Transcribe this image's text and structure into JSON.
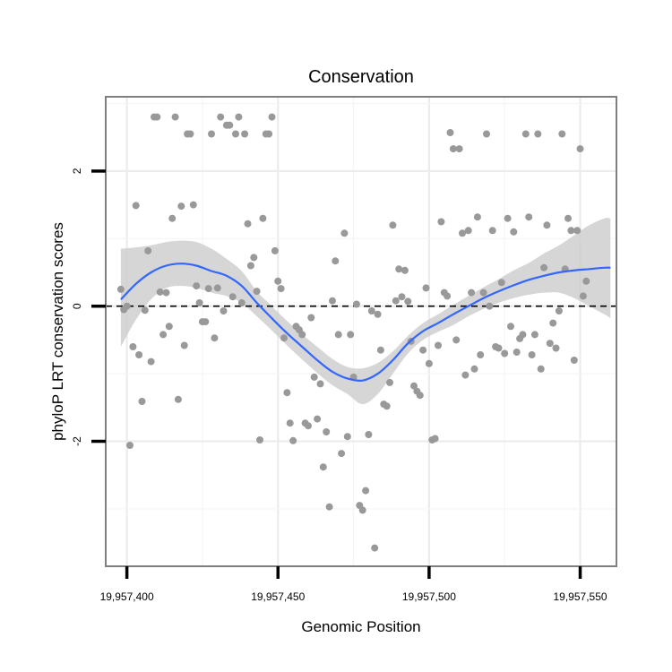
{
  "chart_data": {
    "type": "scatter",
    "title": "Conservation",
    "xlabel": "Genomic Position",
    "ylabel": "phyloP LRT conservation scores",
    "xlim": [
      19957393,
      19957562
    ],
    "ylim": [
      -3.85,
      3.1
    ],
    "x_ticks": [
      19957400,
      19957450,
      19957500,
      19957550
    ],
    "x_tick_labels": [
      "19,957,400",
      "19,957,450",
      "19,957,500",
      "19,957,550"
    ],
    "y_ticks": [
      -2,
      0,
      2
    ],
    "y_tick_labels": [
      "-2",
      "0",
      "2"
    ],
    "reference_line": {
      "y": 0,
      "style": "dashed"
    },
    "grid": true,
    "colors": {
      "points": "#999999",
      "smooth_line": "#3366ff",
      "confidence_band": "#cccccc",
      "panel_border": "#7f7f7f"
    },
    "points": [
      {
        "x": 19957398,
        "y": 0.25
      },
      {
        "x": 19957399,
        "y": -0.05
      },
      {
        "x": 19957400,
        "y": 0.0
      },
      {
        "x": 19957401,
        "y": -2.06
      },
      {
        "x": 19957402,
        "y": -0.6
      },
      {
        "x": 19957403,
        "y": 1.49
      },
      {
        "x": 19957404,
        "y": -0.72
      },
      {
        "x": 19957405,
        "y": -1.41
      },
      {
        "x": 19957406,
        "y": -0.06
      },
      {
        "x": 19957407,
        "y": 0.82
      },
      {
        "x": 19957408,
        "y": -0.82
      },
      {
        "x": 19957409,
        "y": 2.8
      },
      {
        "x": 19957410,
        "y": 2.8
      },
      {
        "x": 19957411,
        "y": 0.21
      },
      {
        "x": 19957412,
        "y": -0.42
      },
      {
        "x": 19957413,
        "y": 0.2
      },
      {
        "x": 19957414,
        "y": -0.3
      },
      {
        "x": 19957415,
        "y": 1.3
      },
      {
        "x": 19957416,
        "y": 2.8
      },
      {
        "x": 19957417,
        "y": -1.38
      },
      {
        "x": 19957418,
        "y": 1.48
      },
      {
        "x": 19957419,
        "y": -0.58
      },
      {
        "x": 19957420,
        "y": 2.55
      },
      {
        "x": 19957421,
        "y": 2.55
      },
      {
        "x": 19957422,
        "y": 1.5
      },
      {
        "x": 19957423,
        "y": 0.3
      },
      {
        "x": 19957424,
        "y": 0.05
      },
      {
        "x": 19957425,
        "y": -0.23
      },
      {
        "x": 19957426,
        "y": -0.23
      },
      {
        "x": 19957427,
        "y": 0.26
      },
      {
        "x": 19957428,
        "y": 2.55
      },
      {
        "x": 19957429,
        "y": -0.47
      },
      {
        "x": 19957430,
        "y": 0.27
      },
      {
        "x": 19957431,
        "y": 2.8
      },
      {
        "x": 19957432,
        "y": -0.07
      },
      {
        "x": 19957433,
        "y": 2.68
      },
      {
        "x": 19957434,
        "y": 2.68
      },
      {
        "x": 19957435,
        "y": 0.14
      },
      {
        "x": 19957436,
        "y": 2.55
      },
      {
        "x": 19957437,
        "y": 2.8
      },
      {
        "x": 19957438,
        "y": 0.05
      },
      {
        "x": 19957439,
        "y": 2.55
      },
      {
        "x": 19957440,
        "y": 1.22
      },
      {
        "x": 19957441,
        "y": 0.6
      },
      {
        "x": 19957442,
        "y": 0.72
      },
      {
        "x": 19957443,
        "y": 0.22
      },
      {
        "x": 19957444,
        "y": -1.98
      },
      {
        "x": 19957445,
        "y": 1.3
      },
      {
        "x": 19957446,
        "y": 2.55
      },
      {
        "x": 19957447,
        "y": 2.55
      },
      {
        "x": 19957448,
        "y": 2.8
      },
      {
        "x": 19957449,
        "y": 0.82
      },
      {
        "x": 19957450,
        "y": 0.37
      },
      {
        "x": 19957451,
        "y": 0.26
      },
      {
        "x": 19957452,
        "y": -0.47
      },
      {
        "x": 19957453,
        "y": -1.28
      },
      {
        "x": 19957454,
        "y": -1.73
      },
      {
        "x": 19957455,
        "y": -1.99
      },
      {
        "x": 19957456,
        "y": -0.3
      },
      {
        "x": 19957457,
        "y": -0.35
      },
      {
        "x": 19957458,
        "y": -0.42
      },
      {
        "x": 19957459,
        "y": -1.73
      },
      {
        "x": 19957460,
        "y": -1.77
      },
      {
        "x": 19957461,
        "y": -0.17
      },
      {
        "x": 19957462,
        "y": -1.05
      },
      {
        "x": 19957463,
        "y": -1.67
      },
      {
        "x": 19957464,
        "y": -1.15
      },
      {
        "x": 19957465,
        "y": -2.38
      },
      {
        "x": 19957466,
        "y": -1.86
      },
      {
        "x": 19957467,
        "y": -2.97
      },
      {
        "x": 19957468,
        "y": 0.08
      },
      {
        "x": 19957469,
        "y": 0.67
      },
      {
        "x": 19957470,
        "y": -0.42
      },
      {
        "x": 19957471,
        "y": -2.18
      },
      {
        "x": 19957472,
        "y": 1.08
      },
      {
        "x": 19957473,
        "y": -1.93
      },
      {
        "x": 19957474,
        "y": -0.42
      },
      {
        "x": 19957475,
        "y": -1.05
      },
      {
        "x": 19957476,
        "y": 0.03
      },
      {
        "x": 19957477,
        "y": -2.95
      },
      {
        "x": 19957478,
        "y": -3.02
      },
      {
        "x": 19957479,
        "y": -2.73
      },
      {
        "x": 19957480,
        "y": -1.9
      },
      {
        "x": 19957481,
        "y": -0.07
      },
      {
        "x": 19957482,
        "y": -3.58
      },
      {
        "x": 19957483,
        "y": -0.12
      },
      {
        "x": 19957484,
        "y": -0.65
      },
      {
        "x": 19957485,
        "y": -1.45
      },
      {
        "x": 19957486,
        "y": -1.48
      },
      {
        "x": 19957487,
        "y": -1.13
      },
      {
        "x": 19957488,
        "y": 1.2
      },
      {
        "x": 19957489,
        "y": 0.08
      },
      {
        "x": 19957490,
        "y": 0.55
      },
      {
        "x": 19957491,
        "y": 0.14
      },
      {
        "x": 19957492,
        "y": 0.53
      },
      {
        "x": 19957493,
        "y": 0.07
      },
      {
        "x": 19957494,
        "y": -0.52
      },
      {
        "x": 19957495,
        "y": -1.18
      },
      {
        "x": 19957496,
        "y": -1.26
      },
      {
        "x": 19957497,
        "y": -1.32
      },
      {
        "x": 19957498,
        "y": -0.65
      },
      {
        "x": 19957499,
        "y": 0.27
      },
      {
        "x": 19957500,
        "y": -0.85
      },
      {
        "x": 19957501,
        "y": -1.98
      },
      {
        "x": 19957502,
        "y": -1.96
      },
      {
        "x": 19957503,
        "y": -0.58
      },
      {
        "x": 19957504,
        "y": 1.25
      },
      {
        "x": 19957505,
        "y": 0.2
      },
      {
        "x": 19957506,
        "y": 0.15
      },
      {
        "x": 19957507,
        "y": 2.57
      },
      {
        "x": 19957508,
        "y": 2.33
      },
      {
        "x": 19957509,
        "y": -0.5
      },
      {
        "x": 19957510,
        "y": 2.33
      },
      {
        "x": 19957511,
        "y": 1.08
      },
      {
        "x": 19957512,
        "y": -1.02
      },
      {
        "x": 19957513,
        "y": 1.12
      },
      {
        "x": 19957514,
        "y": 0.2
      },
      {
        "x": 19957515,
        "y": -0.93
      },
      {
        "x": 19957516,
        "y": 1.32
      },
      {
        "x": 19957517,
        "y": -0.72
      },
      {
        "x": 19957518,
        "y": 0.2
      },
      {
        "x": 19957519,
        "y": 2.55
      },
      {
        "x": 19957520,
        "y": 0.0
      },
      {
        "x": 19957521,
        "y": 1.12
      },
      {
        "x": 19957522,
        "y": -0.6
      },
      {
        "x": 19957523,
        "y": -0.62
      },
      {
        "x": 19957524,
        "y": 0.35
      },
      {
        "x": 19957525,
        "y": -0.7
      },
      {
        "x": 19957526,
        "y": 1.3
      },
      {
        "x": 19957527,
        "y": -0.3
      },
      {
        "x": 19957528,
        "y": 1.1
      },
      {
        "x": 19957529,
        "y": -0.68
      },
      {
        "x": 19957530,
        "y": -0.48
      },
      {
        "x": 19957531,
        "y": -0.42
      },
      {
        "x": 19957532,
        "y": 2.55
      },
      {
        "x": 19957533,
        "y": 1.32
      },
      {
        "x": 19957534,
        "y": -0.72
      },
      {
        "x": 19957535,
        "y": -0.42
      },
      {
        "x": 19957536,
        "y": 2.55
      },
      {
        "x": 19957537,
        "y": -0.93
      },
      {
        "x": 19957538,
        "y": 0.57
      },
      {
        "x": 19957539,
        "y": 1.2
      },
      {
        "x": 19957540,
        "y": -0.55
      },
      {
        "x": 19957541,
        "y": -0.25
      },
      {
        "x": 19957542,
        "y": -0.62
      },
      {
        "x": 19957543,
        "y": -0.07
      },
      {
        "x": 19957544,
        "y": 2.55
      },
      {
        "x": 19957545,
        "y": 0.55
      },
      {
        "x": 19957546,
        "y": 1.3
      },
      {
        "x": 19957547,
        "y": 1.12
      },
      {
        "x": 19957548,
        "y": -0.8
      },
      {
        "x": 19957549,
        "y": 1.12
      },
      {
        "x": 19957550,
        "y": 2.33
      },
      {
        "x": 19957551,
        "y": 0.15
      },
      {
        "x": 19957552,
        "y": 0.37
      }
    ],
    "smooth_fit": {
      "x": [
        19957398,
        19957403,
        19957408,
        19957413,
        19957418,
        19957423,
        19957428,
        19957433,
        19957438,
        19957443,
        19957448,
        19957453,
        19957458,
        19957463,
        19957468,
        19957473,
        19957478,
        19957483,
        19957488,
        19957493,
        19957498,
        19957503,
        19957508,
        19957513,
        19957518,
        19957523,
        19957528,
        19957533,
        19957538,
        19957543,
        19957548,
        19957553,
        19957558,
        19957560
      ],
      "y": [
        0.1,
        0.33,
        0.5,
        0.6,
        0.63,
        0.6,
        0.52,
        0.45,
        0.3,
        0.05,
        -0.18,
        -0.4,
        -0.6,
        -0.8,
        -0.97,
        -1.07,
        -1.1,
        -1.0,
        -0.8,
        -0.55,
        -0.37,
        -0.25,
        -0.12,
        0.0,
        0.12,
        0.22,
        0.31,
        0.39,
        0.45,
        0.5,
        0.53,
        0.55,
        0.57,
        0.57
      ],
      "upper": [
        0.85,
        0.87,
        0.9,
        0.95,
        0.97,
        0.95,
        0.85,
        0.7,
        0.52,
        0.22,
        0.0,
        -0.22,
        -0.42,
        -0.6,
        -0.78,
        -0.9,
        -0.92,
        -0.84,
        -0.67,
        -0.44,
        -0.25,
        -0.12,
        0.02,
        0.15,
        0.28,
        0.4,
        0.53,
        0.64,
        0.78,
        0.9,
        1.05,
        1.2,
        1.3,
        1.3
      ],
      "lower": [
        -0.6,
        -0.2,
        0.1,
        0.27,
        0.3,
        0.27,
        0.2,
        0.15,
        0.05,
        -0.15,
        -0.36,
        -0.58,
        -0.79,
        -0.99,
        -1.17,
        -1.3,
        -1.45,
        -1.3,
        -1.0,
        -0.7,
        -0.5,
        -0.38,
        -0.28,
        -0.15,
        -0.04,
        0.05,
        0.12,
        0.17,
        0.2,
        0.2,
        0.12,
        0.0,
        -0.12,
        -0.18
      ]
    }
  }
}
